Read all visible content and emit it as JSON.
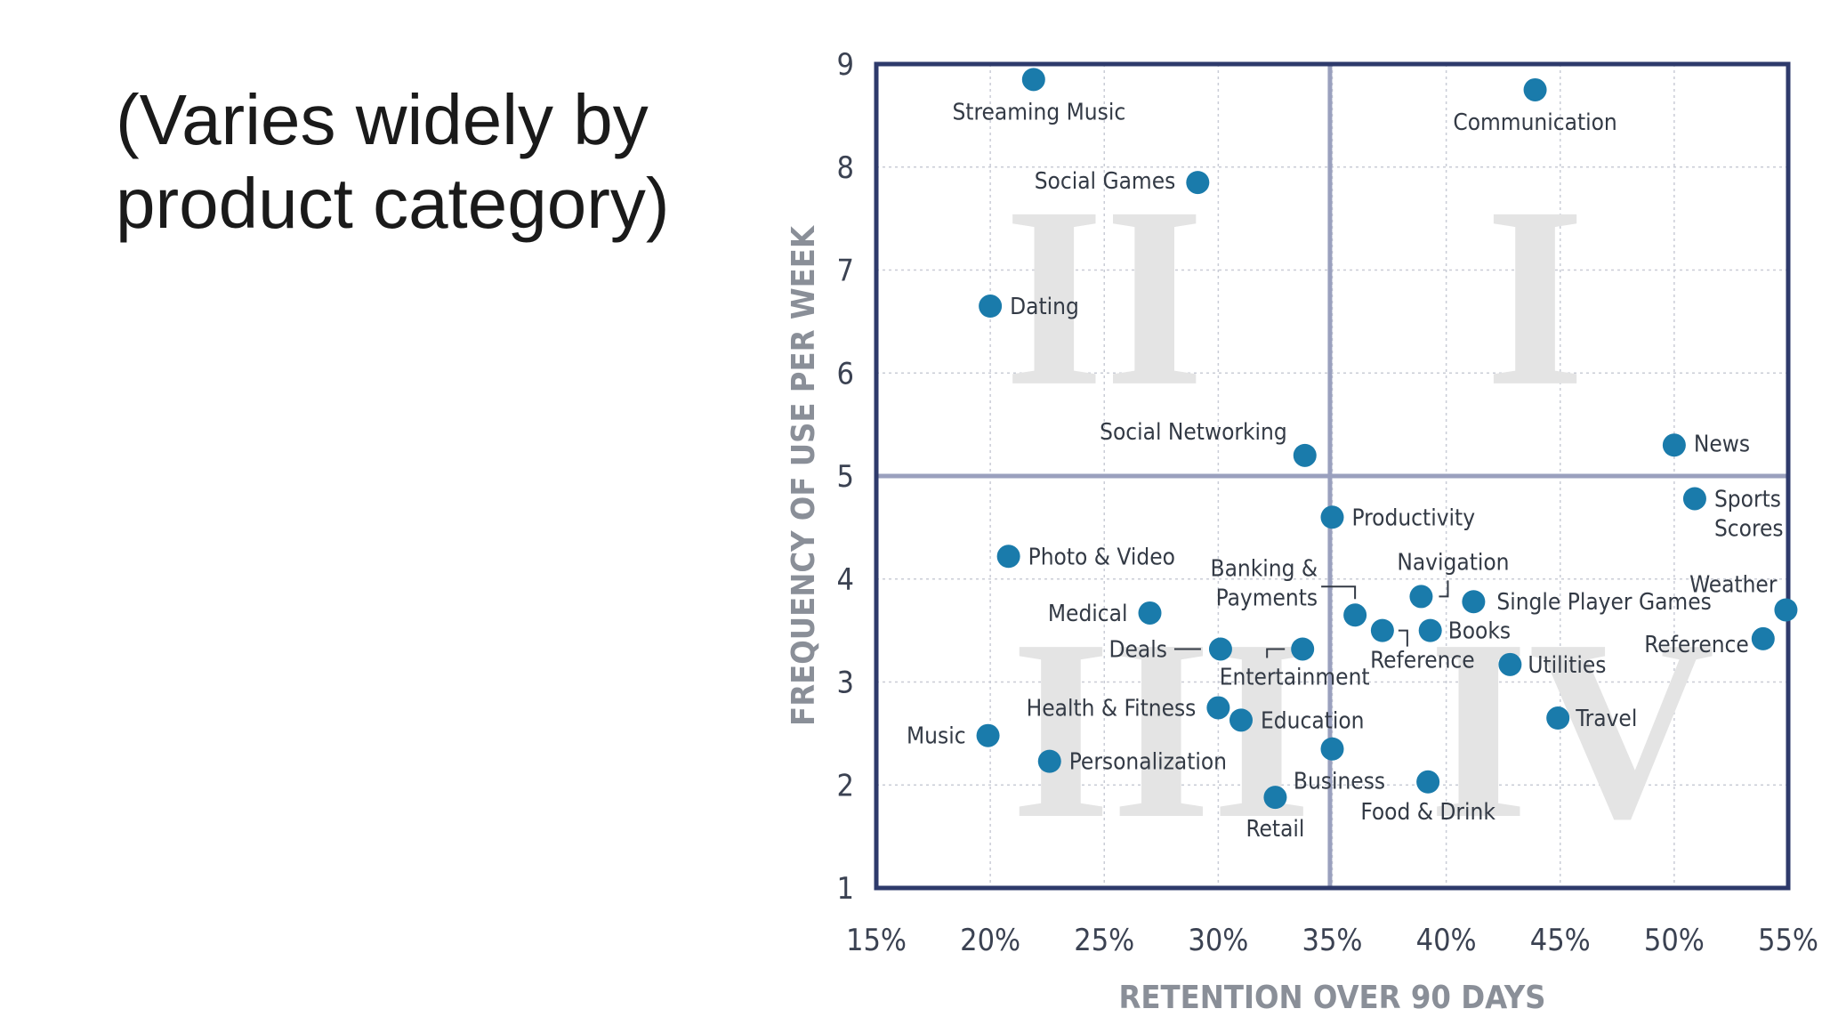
{
  "slide": {
    "title": "(Varies widely by product category)"
  },
  "chart_data": {
    "type": "scatter",
    "xlabel": "RETENTION OVER 90 DAYS",
    "ylabel": "FREQUENCY OF USE PER WEEK",
    "xlim": [
      15,
      55
    ],
    "ylim": [
      1,
      9
    ],
    "x_ticks": [
      "15%",
      "20%",
      "25%",
      "30%",
      "35%",
      "40%",
      "45%",
      "50%",
      "55%"
    ],
    "y_ticks": [
      "1",
      "2",
      "3",
      "4",
      "5",
      "6",
      "7",
      "8",
      "9"
    ],
    "quadrant_dividers": {
      "x": 34.9,
      "y": 5
    },
    "quadrant_labels": [
      "II",
      "I",
      "III",
      "IV"
    ],
    "grid": true,
    "point_color": "#1a7bab",
    "frame_color": "#2e3a6b",
    "divider_color": "#9aa0be",
    "points": [
      {
        "label": "Streaming Music",
        "x": 21.9,
        "y": 8.85
      },
      {
        "label": "Communication",
        "x": 43.9,
        "y": 8.75
      },
      {
        "label": "Social Games",
        "x": 29.1,
        "y": 7.85
      },
      {
        "label": "Dating",
        "x": 20.0,
        "y": 6.65
      },
      {
        "label": "Social Networking",
        "x": 33.8,
        "y": 5.2
      },
      {
        "label": "News",
        "x": 50.0,
        "y": 5.3
      },
      {
        "label": "Sports Scores",
        "x": 50.9,
        "y": 4.78
      },
      {
        "label": "Productivity",
        "x": 35.0,
        "y": 4.6
      },
      {
        "label": "Photo & Video",
        "x": 20.8,
        "y": 4.22
      },
      {
        "label": "Navigation",
        "x": 38.9,
        "y": 3.83
      },
      {
        "label": "Single Player Games",
        "x": 41.2,
        "y": 3.78
      },
      {
        "label": "Weather",
        "x": 54.9,
        "y": 3.7
      },
      {
        "label": "Medical",
        "x": 27.0,
        "y": 3.67
      },
      {
        "label": "Banking & Payments",
        "x": 36.0,
        "y": 3.65
      },
      {
        "label": "Books",
        "x": 39.3,
        "y": 3.5
      },
      {
        "label": "Reference",
        "x": 37.2,
        "y": 3.5
      },
      {
        "label": "Reference",
        "x": 53.9,
        "y": 3.42
      },
      {
        "label": "Deals",
        "x": 30.1,
        "y": 3.32
      },
      {
        "label": "Entertainment",
        "x": 33.7,
        "y": 3.32
      },
      {
        "label": "Utilities",
        "x": 42.8,
        "y": 3.17
      },
      {
        "label": "Health & Fitness",
        "x": 30.0,
        "y": 2.75
      },
      {
        "label": "Education",
        "x": 31.0,
        "y": 2.63
      },
      {
        "label": "Travel",
        "x": 44.9,
        "y": 2.65
      },
      {
        "label": "Music",
        "x": 19.9,
        "y": 2.48
      },
      {
        "label": "Business",
        "x": 35.0,
        "y": 2.35
      },
      {
        "label": "Personalization",
        "x": 22.6,
        "y": 2.23
      },
      {
        "label": "Food & Drink",
        "x": 39.2,
        "y": 2.03
      },
      {
        "label": "Retail",
        "x": 32.5,
        "y": 1.88
      }
    ]
  }
}
